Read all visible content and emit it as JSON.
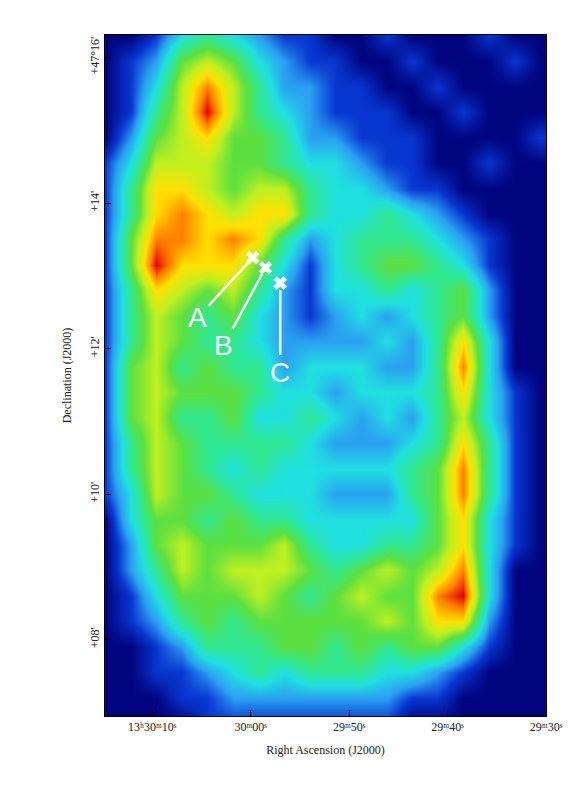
{
  "chart_data": {
    "type": "heatmap",
    "xlabel": "Right Ascension (J2000)",
    "ylabel": "Declination (J2000)",
    "xlim": [
      48614.8,
      48570.0
    ],
    "xticks": [
      {
        "value": 48610,
        "label": "13ʰ30ᵐ10ˢ"
      },
      {
        "value": 48600,
        "label": "30ᵐ00ˢ"
      },
      {
        "value": 48590,
        "label": "29ᵐ50ˢ"
      },
      {
        "value": 48580,
        "label": "29ᵐ40ˢ"
      },
      {
        "value": 48570,
        "label": "29ᵐ30ˢ"
      }
    ],
    "ylim": [
      6.95,
      16.31
    ],
    "yticks": [
      {
        "value": 16,
        "label": "+47°16'"
      },
      {
        "value": 14,
        "label": "+14'"
      },
      {
        "value": 12,
        "label": "+12'"
      },
      {
        "value": 10,
        "label": "+10'"
      },
      {
        "value": 8,
        "label": "+08'"
      }
    ],
    "grid": false,
    "x": [
      48614.8,
      48612.2,
      48609.6,
      48607.0,
      48604.4,
      48601.8,
      48599.2,
      48596.6,
      48594.0,
      48591.4,
      48588.8,
      48586.2,
      48583.6,
      48581.0,
      48578.4,
      48575.8,
      48573.2,
      48570.6
    ],
    "y": [
      16.3,
      15.95,
      15.6,
      15.25,
      14.9,
      14.55,
      14.2,
      13.85,
      13.5,
      13.15,
      12.8,
      12.45,
      12.1,
      11.75,
      11.4,
      11.05,
      10.7,
      10.35,
      10.0,
      9.65,
      9.3,
      8.95,
      8.6,
      8.25,
      7.9,
      7.55,
      7.2,
      6.85
    ],
    "zlim": [
      0,
      10
    ],
    "cells": [
      [
        1,
        1,
        2,
        4,
        5,
        4,
        3,
        2,
        2,
        1,
        1,
        2,
        1,
        1,
        1,
        2,
        1,
        1
      ],
      [
        1,
        2,
        3,
        6,
        7,
        6,
        4,
        3,
        2,
        2,
        1,
        1,
        2,
        1,
        1,
        1,
        2,
        1
      ],
      [
        1,
        2,
        4,
        7,
        9,
        7,
        5,
        3,
        3,
        2,
        2,
        1,
        1,
        2,
        1,
        1,
        1,
        1
      ],
      [
        1,
        2,
        5,
        7,
        10,
        7,
        5,
        4,
        3,
        2,
        2,
        2,
        1,
        1,
        2,
        1,
        1,
        1
      ],
      [
        1,
        3,
        6,
        7,
        8,
        6,
        6,
        5,
        3,
        3,
        2,
        2,
        2,
        1,
        1,
        1,
        1,
        2
      ],
      [
        2,
        4,
        7,
        7,
        7,
        6,
        6,
        5,
        4,
        4,
        3,
        2,
        2,
        1,
        1,
        2,
        1,
        1
      ],
      [
        2,
        5,
        8,
        8,
        7,
        6,
        7,
        7,
        5,
        4,
        4,
        3,
        2,
        2,
        1,
        1,
        1,
        1
      ],
      [
        2,
        5,
        8,
        9,
        8,
        7,
        8,
        8,
        5,
        4,
        4,
        5,
        4,
        3,
        2,
        1,
        1,
        1
      ],
      [
        2,
        6,
        9,
        9,
        8,
        9,
        8,
        5,
        3,
        4,
        5,
        5,
        5,
        4,
        3,
        2,
        1,
        1
      ],
      [
        2,
        6,
        10,
        8,
        8,
        8,
        6,
        4,
        2,
        4,
        5,
        6,
        6,
        5,
        4,
        2,
        1,
        1
      ],
      [
        2,
        5,
        8,
        7,
        6,
        7,
        5,
        3,
        2,
        4,
        4,
        5,
        4,
        5,
        6,
        3,
        1,
        1
      ],
      [
        2,
        5,
        7,
        6,
        5,
        6,
        4,
        3,
        2,
        3,
        4,
        3,
        4,
        5,
        6,
        3,
        1,
        1
      ],
      [
        2,
        5,
        7,
        6,
        5,
        5,
        4,
        3,
        3,
        3,
        3,
        4,
        3,
        5,
        8,
        4,
        1,
        1
      ],
      [
        2,
        6,
        7,
        5,
        6,
        5,
        5,
        3,
        4,
        4,
        4,
        3,
        3,
        5,
        9,
        4,
        1,
        1
      ],
      [
        2,
        6,
        7,
        6,
        6,
        6,
        5,
        4,
        4,
        3,
        4,
        4,
        4,
        5,
        8,
        4,
        2,
        1
      ],
      [
        2,
        6,
        7,
        5,
        5,
        6,
        4,
        4,
        5,
        4,
        3,
        4,
        3,
        5,
        7,
        4,
        2,
        1
      ],
      [
        2,
        5,
        7,
        6,
        5,
        5,
        5,
        5,
        4,
        3,
        3,
        3,
        4,
        5,
        8,
        5,
        2,
        1
      ],
      [
        2,
        5,
        7,
        6,
        5,
        4,
        5,
        4,
        4,
        4,
        4,
        4,
        5,
        6,
        9,
        5,
        2,
        1
      ],
      [
        2,
        4,
        7,
        6,
        6,
        5,
        4,
        4,
        4,
        3,
        3,
        3,
        5,
        6,
        9,
        5,
        2,
        1
      ],
      [
        1,
        4,
        6,
        6,
        5,
        6,
        5,
        5,
        4,
        4,
        4,
        4,
        4,
        6,
        8,
        4,
        2,
        1
      ],
      [
        1,
        3,
        6,
        7,
        6,
        6,
        6,
        7,
        5,
        4,
        4,
        5,
        5,
        6,
        8,
        4,
        2,
        1
      ],
      [
        1,
        3,
        5,
        7,
        6,
        7,
        7,
        7,
        6,
        5,
        6,
        7,
        6,
        7,
        9,
        4,
        1,
        1
      ],
      [
        1,
        2,
        4,
        6,
        6,
        6,
        7,
        6,
        5,
        6,
        7,
        6,
        6,
        9,
        10,
        4,
        1,
        1
      ],
      [
        1,
        2,
        3,
        5,
        6,
        5,
        6,
        6,
        6,
        6,
        6,
        7,
        6,
        8,
        8,
        3,
        1,
        1
      ],
      [
        1,
        1,
        2,
        3,
        5,
        5,
        5,
        6,
        6,
        5,
        6,
        5,
        6,
        6,
        4,
        2,
        1,
        1
      ],
      [
        1,
        1,
        2,
        2,
        3,
        4,
        5,
        4,
        5,
        5,
        5,
        4,
        4,
        3,
        2,
        1,
        1,
        1
      ],
      [
        1,
        1,
        1,
        2,
        2,
        3,
        3,
        3,
        3,
        3,
        3,
        3,
        2,
        2,
        1,
        1,
        1,
        1
      ],
      [
        1,
        1,
        1,
        1,
        2,
        2,
        2,
        2,
        2,
        2,
        2,
        2,
        1,
        1,
        1,
        1,
        1,
        1
      ]
    ],
    "markers": [
      {
        "label": "A",
        "x": 48599.8,
        "y": 13.25
      },
      {
        "label": "B",
        "x": 48598.5,
        "y": 13.11
      },
      {
        "label": "C",
        "x": 48597.0,
        "y": 12.9
      }
    ]
  }
}
